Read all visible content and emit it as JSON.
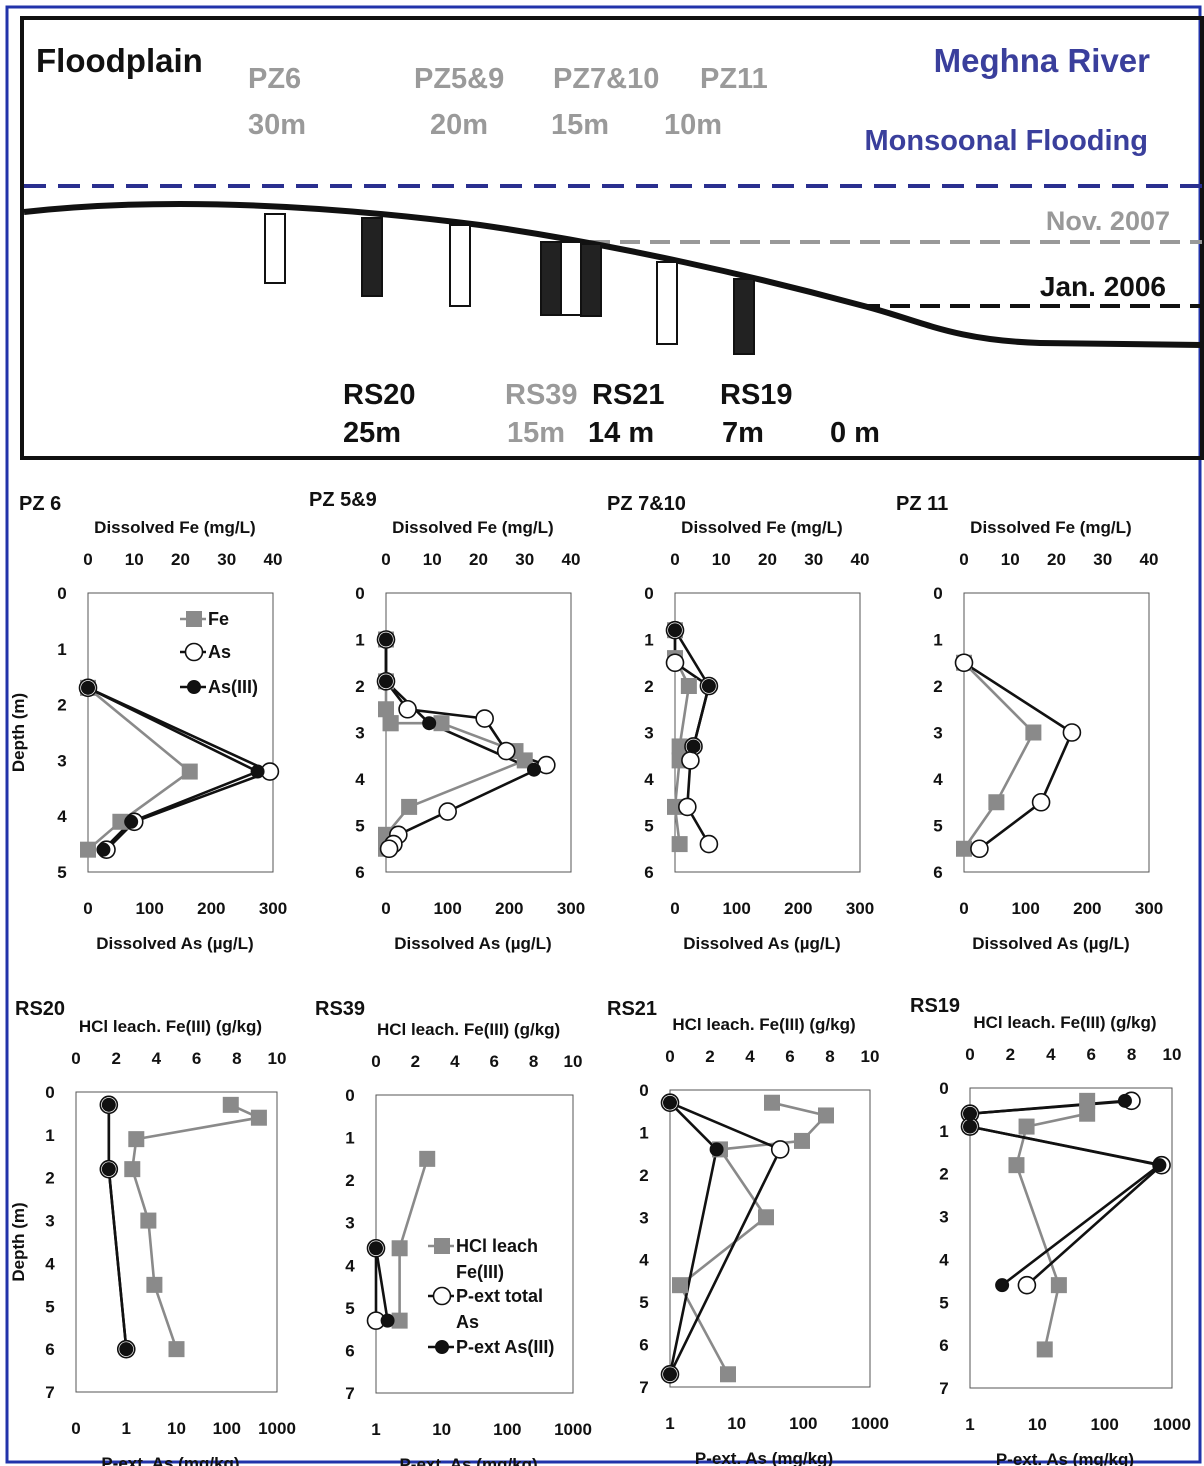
{
  "colors": {
    "frame_blue": "#2233aa",
    "river_blue": "#3a3f9c",
    "gray": "#8a8a8a",
    "label_gray": "#9a9a9a",
    "black": "#111111"
  },
  "transect": {
    "floodplain": "Floodplain",
    "river": "Meghna River",
    "flooding": "Monsoonal  Flooding",
    "nov": "Nov. 2007",
    "jan": "Jan. 2006",
    "pz_names": [
      "PZ6",
      "PZ5&9",
      "PZ7&10",
      "PZ11"
    ],
    "pz_dists": [
      "30m",
      "20m",
      "15m",
      "10m"
    ],
    "rs_names": [
      "RS20",
      "RS39",
      "RS21",
      "RS19"
    ],
    "rs_dists": [
      "25m",
      "15m",
      "14 m",
      "7m"
    ],
    "zero": "0 m"
  },
  "chart_data": [
    {
      "type": "line",
      "title": "PZ 6",
      "top_axis_label": "Dissolved Fe (mg/L)",
      "top_ticks": [
        "0",
        "10",
        "20",
        "30",
        "40"
      ],
      "top_range": [
        0,
        40
      ],
      "xlabel": "Dissolved As (µg/L)",
      "bottom_ticks": [
        "0",
        "100",
        "200",
        "300"
      ],
      "bottom_range": [
        0,
        300
      ],
      "bottom_scale": "linear",
      "ylabel": "Depth (m)",
      "y_ticks": [
        "0",
        "1",
        "2",
        "3",
        "4",
        "5"
      ],
      "ylim": [
        0,
        5
      ],
      "legend": [
        "Fe",
        "As",
        "As(III)"
      ],
      "series": [
        {
          "name": "Fe",
          "axis": "top",
          "x": [
            0,
            22,
            7,
            0
          ],
          "y": [
            1.7,
            3.2,
            4.1,
            4.6
          ]
        },
        {
          "name": "As",
          "axis": "bottom",
          "x": [
            0,
            295,
            75,
            30
          ],
          "y": [
            1.7,
            3.2,
            4.1,
            4.6
          ]
        },
        {
          "name": "As(III)",
          "axis": "bottom",
          "x": [
            0,
            275,
            70,
            25
          ],
          "y": [
            1.7,
            3.2,
            4.1,
            4.6
          ]
        }
      ]
    },
    {
      "type": "line",
      "title": "PZ 5&9",
      "top_axis_label": "Dissolved Fe (mg/L)",
      "top_ticks": [
        "0",
        "10",
        "20",
        "30",
        "40"
      ],
      "top_range": [
        0,
        40
      ],
      "xlabel": "Dissolved As (µg/L)",
      "bottom_ticks": [
        "0",
        "100",
        "200",
        "300"
      ],
      "bottom_range": [
        0,
        300
      ],
      "bottom_scale": "linear",
      "y_ticks": [
        "0",
        "1",
        "2",
        "3",
        "4",
        "5",
        "6"
      ],
      "ylim": [
        0,
        6
      ],
      "series": [
        {
          "name": "Fe",
          "axis": "top",
          "x": [
            0,
            0,
            0,
            1,
            1,
            12,
            28,
            30,
            5,
            0,
            0
          ],
          "y": [
            1.0,
            1.9,
            2.5,
            2.8,
            2.8,
            2.8,
            3.4,
            3.6,
            4.6,
            5.2,
            5.5
          ]
        },
        {
          "name": "As",
          "axis": "bottom",
          "x": [
            0,
            0,
            35,
            160,
            195,
            260,
            100,
            20,
            12,
            5
          ],
          "y": [
            1.0,
            1.9,
            2.5,
            2.7,
            3.4,
            3.7,
            4.7,
            5.2,
            5.4,
            5.5
          ]
        },
        {
          "name": "As(III)",
          "axis": "bottom",
          "x": [
            0,
            0,
            70,
            240
          ],
          "y": [
            1.0,
            1.9,
            2.8,
            3.8
          ]
        }
      ]
    },
    {
      "type": "line",
      "title": "PZ 7&10",
      "top_axis_label": "Dissolved Fe (mg/L)",
      "top_ticks": [
        "0",
        "10",
        "20",
        "30",
        "40"
      ],
      "top_range": [
        0,
        40
      ],
      "xlabel": "Dissolved As (µg/L)",
      "bottom_ticks": [
        "0",
        "100",
        "200",
        "300"
      ],
      "bottom_range": [
        0,
        300
      ],
      "bottom_scale": "linear",
      "y_ticks": [
        "0",
        "1",
        "2",
        "3",
        "4",
        "5",
        "6"
      ],
      "ylim": [
        0,
        6
      ],
      "series": [
        {
          "name": "Fe",
          "axis": "top",
          "x": [
            0,
            0,
            3,
            1,
            1,
            0,
            1
          ],
          "y": [
            0.8,
            1.4,
            2.0,
            3.3,
            3.6,
            4.6,
            5.4
          ]
        },
        {
          "name": "As",
          "axis": "bottom",
          "x": [
            0,
            0,
            55,
            30,
            25,
            20,
            55
          ],
          "y": [
            0.8,
            1.5,
            2.0,
            3.3,
            3.6,
            4.6,
            5.4
          ]
        },
        {
          "name": "As(III)",
          "axis": "bottom",
          "x": [
            0,
            55,
            30
          ],
          "y": [
            0.8,
            2.0,
            3.3
          ]
        }
      ]
    },
    {
      "type": "line",
      "title": "PZ 11",
      "top_axis_label": "Dissolved Fe (mg/L)",
      "top_ticks": [
        "0",
        "10",
        "20",
        "30",
        "40"
      ],
      "top_range": [
        0,
        40
      ],
      "xlabel": "Dissolved As (µg/L)",
      "bottom_ticks": [
        "0",
        "100",
        "200",
        "300"
      ],
      "bottom_range": [
        0,
        300
      ],
      "bottom_scale": "linear",
      "y_ticks": [
        "0",
        "1",
        "2",
        "3",
        "4",
        "5",
        "6"
      ],
      "ylim": [
        0,
        6
      ],
      "series": [
        {
          "name": "Fe",
          "axis": "top",
          "x": [
            0,
            15,
            7,
            0
          ],
          "y": [
            1.5,
            3.0,
            4.5,
            5.5
          ]
        },
        {
          "name": "As",
          "axis": "bottom",
          "x": [
            0,
            175,
            125,
            25
          ],
          "y": [
            1.5,
            3.0,
            4.5,
            5.5
          ]
        }
      ]
    },
    {
      "type": "line",
      "title": "RS20",
      "top_axis_label": "HCl leach. Fe(III) (g/kg)",
      "top_ticks": [
        "0",
        "2",
        "4",
        "6",
        "8",
        "10"
      ],
      "top_range": [
        0,
        10
      ],
      "xlabel": "P-ext. As (mg/kg)",
      "bottom_ticks": [
        "0",
        "1",
        "10",
        "100",
        "1000"
      ],
      "bottom_range": [
        0.1,
        1000
      ],
      "bottom_scale": "log",
      "ylabel": "Depth (m)",
      "y_ticks": [
        "0",
        "1",
        "2",
        "3",
        "4",
        "5",
        "6",
        "7"
      ],
      "ylim": [
        0,
        7
      ],
      "series": [
        {
          "name": "HCl leach Fe(III)",
          "axis": "top",
          "x": [
            7.7,
            9.1,
            3.0,
            2.8,
            3.6,
            3.9,
            5.0
          ],
          "y": [
            0.3,
            0.6,
            1.1,
            1.8,
            3.0,
            4.5,
            6.0
          ]
        },
        {
          "name": "P-ext total As",
          "axis": "bottom",
          "x": [
            0.45,
            0.45,
            1.0
          ],
          "y": [
            0.3,
            1.8,
            6.0
          ]
        },
        {
          "name": "P-ext As(III)",
          "axis": "bottom",
          "x": [
            0.45,
            0.45,
            1.0
          ],
          "y": [
            0.3,
            1.8,
            6.0
          ]
        }
      ]
    },
    {
      "type": "line",
      "title": "RS39",
      "top_axis_label": "HCl leach. Fe(III) (g/kg)",
      "top_ticks": [
        "0",
        "2",
        "4",
        "6",
        "8",
        "10"
      ],
      "top_range": [
        0,
        10
      ],
      "xlabel": "P-ext. As (mg/kg)",
      "bottom_ticks": [
        "1",
        "10",
        "100",
        "1000"
      ],
      "bottom_range": [
        1,
        1000
      ],
      "bottom_scale": "log",
      "y_ticks": [
        "0",
        "1",
        "2",
        "3",
        "4",
        "5",
        "6",
        "7"
      ],
      "ylim": [
        0,
        7
      ],
      "legend": [
        "HCl leach Fe(III)",
        "P-ext total As",
        "P-ext As(III)"
      ],
      "series": [
        {
          "name": "HCl leach Fe(III)",
          "axis": "top",
          "x": [
            2.6,
            1.2,
            1.2
          ],
          "y": [
            1.5,
            3.6,
            5.3
          ]
        },
        {
          "name": "P-ext total As",
          "axis": "bottom",
          "x": [
            1.0,
            1.0
          ],
          "y": [
            3.6,
            5.3
          ]
        },
        {
          "name": "P-ext As(III)",
          "axis": "bottom",
          "x": [
            1.0,
            1.5
          ],
          "y": [
            3.6,
            5.3
          ]
        }
      ]
    },
    {
      "type": "line",
      "title": "RS21",
      "top_axis_label": "HCl leach. Fe(III) (g/kg)",
      "top_ticks": [
        "0",
        "2",
        "4",
        "6",
        "8",
        "10"
      ],
      "top_range": [
        0,
        10
      ],
      "xlabel": "P-ext. As (mg/kg)",
      "bottom_ticks": [
        "1",
        "10",
        "100",
        "1000"
      ],
      "bottom_range": [
        1,
        1000
      ],
      "bottom_scale": "log",
      "y_ticks": [
        "0",
        "1",
        "2",
        "3",
        "4",
        "5",
        "6",
        "7"
      ],
      "ylim": [
        0,
        7
      ],
      "series": [
        {
          "name": "HCl leach Fe(III)",
          "axis": "top",
          "x": [
            5.1,
            7.8,
            6.6,
            2.5,
            4.8,
            0.5,
            2.9
          ],
          "y": [
            0.3,
            0.6,
            1.2,
            1.4,
            3.0,
            4.6,
            6.7
          ]
        },
        {
          "name": "P-ext total As",
          "axis": "bottom",
          "x": [
            1,
            45,
            1
          ],
          "y": [
            0.3,
            1.4,
            6.7
          ]
        },
        {
          "name": "P-ext As(III)",
          "axis": "bottom",
          "x": [
            1,
            5,
            1
          ],
          "y": [
            0.3,
            1.4,
            6.7
          ]
        }
      ]
    },
    {
      "type": "line",
      "title": "RS19",
      "top_axis_label": "HCl leach. Fe(III) (g/kg)",
      "top_ticks": [
        "0",
        "2",
        "4",
        "6",
        "8",
        "10"
      ],
      "top_range": [
        0,
        10
      ],
      "xlabel": "P-ext. As (mg/kg)",
      "bottom_ticks": [
        "1",
        "10",
        "100",
        "1000"
      ],
      "bottom_range": [
        1,
        1000
      ],
      "bottom_scale": "log",
      "y_ticks": [
        "0",
        "1",
        "2",
        "3",
        "4",
        "5",
        "6",
        "7"
      ],
      "ylim": [
        0,
        7
      ],
      "series": [
        {
          "name": "HCl leach Fe(III)",
          "axis": "top",
          "x": [
            5.8,
            5.8,
            2.8,
            2.3,
            4.4,
            3.7
          ],
          "y": [
            0.3,
            0.6,
            0.9,
            1.8,
            4.6,
            6.1
          ]
        },
        {
          "name": "P-ext total As",
          "axis": "bottom",
          "x": [
            250,
            1,
            1,
            700,
            7
          ],
          "y": [
            0.3,
            0.6,
            0.9,
            1.8,
            4.6
          ]
        },
        {
          "name": "P-ext As(III)",
          "axis": "bottom",
          "x": [
            200,
            1,
            1,
            650,
            3
          ],
          "y": [
            0.3,
            0.6,
            0.9,
            1.8,
            4.6
          ]
        }
      ]
    }
  ]
}
